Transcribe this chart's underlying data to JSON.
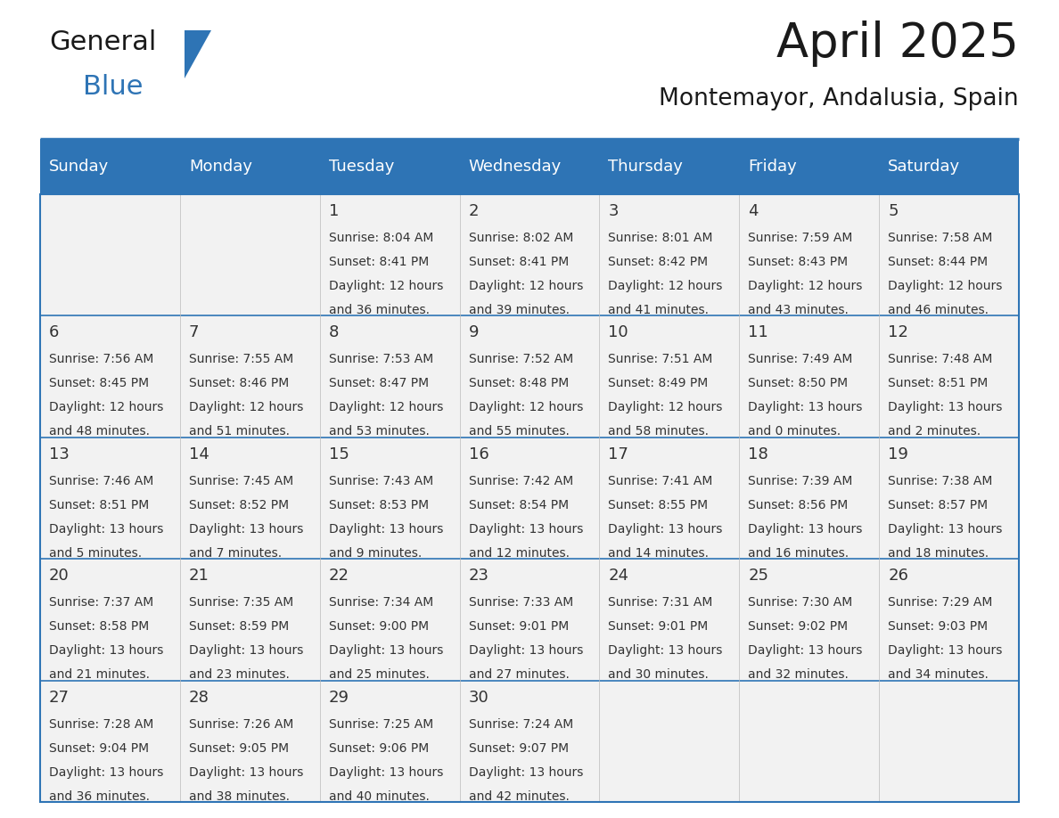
{
  "title": "April 2025",
  "subtitle": "Montemayor, Andalusia, Spain",
  "header_bg_color": "#2E74B5",
  "header_text_color": "#FFFFFF",
  "cell_bg_color": "#F2F2F2",
  "day_names": [
    "Sunday",
    "Monday",
    "Tuesday",
    "Wednesday",
    "Thursday",
    "Friday",
    "Saturday"
  ],
  "grid_line_color": "#2E74B5",
  "text_color": "#333333",
  "calendar": [
    [
      null,
      null,
      {
        "day": 1,
        "sunrise": "8:04 AM",
        "sunset": "8:41 PM",
        "daylight_hours": 12,
        "daylight_minutes": 36
      },
      {
        "day": 2,
        "sunrise": "8:02 AM",
        "sunset": "8:41 PM",
        "daylight_hours": 12,
        "daylight_minutes": 39
      },
      {
        "day": 3,
        "sunrise": "8:01 AM",
        "sunset": "8:42 PM",
        "daylight_hours": 12,
        "daylight_minutes": 41
      },
      {
        "day": 4,
        "sunrise": "7:59 AM",
        "sunset": "8:43 PM",
        "daylight_hours": 12,
        "daylight_minutes": 43
      },
      {
        "day": 5,
        "sunrise": "7:58 AM",
        "sunset": "8:44 PM",
        "daylight_hours": 12,
        "daylight_minutes": 46
      }
    ],
    [
      {
        "day": 6,
        "sunrise": "7:56 AM",
        "sunset": "8:45 PM",
        "daylight_hours": 12,
        "daylight_minutes": 48
      },
      {
        "day": 7,
        "sunrise": "7:55 AM",
        "sunset": "8:46 PM",
        "daylight_hours": 12,
        "daylight_minutes": 51
      },
      {
        "day": 8,
        "sunrise": "7:53 AM",
        "sunset": "8:47 PM",
        "daylight_hours": 12,
        "daylight_minutes": 53
      },
      {
        "day": 9,
        "sunrise": "7:52 AM",
        "sunset": "8:48 PM",
        "daylight_hours": 12,
        "daylight_minutes": 55
      },
      {
        "day": 10,
        "sunrise": "7:51 AM",
        "sunset": "8:49 PM",
        "daylight_hours": 12,
        "daylight_minutes": 58
      },
      {
        "day": 11,
        "sunrise": "7:49 AM",
        "sunset": "8:50 PM",
        "daylight_hours": 13,
        "daylight_minutes": 0
      },
      {
        "day": 12,
        "sunrise": "7:48 AM",
        "sunset": "8:51 PM",
        "daylight_hours": 13,
        "daylight_minutes": 2
      }
    ],
    [
      {
        "day": 13,
        "sunrise": "7:46 AM",
        "sunset": "8:51 PM",
        "daylight_hours": 13,
        "daylight_minutes": 5
      },
      {
        "day": 14,
        "sunrise": "7:45 AM",
        "sunset": "8:52 PM",
        "daylight_hours": 13,
        "daylight_minutes": 7
      },
      {
        "day": 15,
        "sunrise": "7:43 AM",
        "sunset": "8:53 PM",
        "daylight_hours": 13,
        "daylight_minutes": 9
      },
      {
        "day": 16,
        "sunrise": "7:42 AM",
        "sunset": "8:54 PM",
        "daylight_hours": 13,
        "daylight_minutes": 12
      },
      {
        "day": 17,
        "sunrise": "7:41 AM",
        "sunset": "8:55 PM",
        "daylight_hours": 13,
        "daylight_minutes": 14
      },
      {
        "day": 18,
        "sunrise": "7:39 AM",
        "sunset": "8:56 PM",
        "daylight_hours": 13,
        "daylight_minutes": 16
      },
      {
        "day": 19,
        "sunrise": "7:38 AM",
        "sunset": "8:57 PM",
        "daylight_hours": 13,
        "daylight_minutes": 18
      }
    ],
    [
      {
        "day": 20,
        "sunrise": "7:37 AM",
        "sunset": "8:58 PM",
        "daylight_hours": 13,
        "daylight_minutes": 21
      },
      {
        "day": 21,
        "sunrise": "7:35 AM",
        "sunset": "8:59 PM",
        "daylight_hours": 13,
        "daylight_minutes": 23
      },
      {
        "day": 22,
        "sunrise": "7:34 AM",
        "sunset": "9:00 PM",
        "daylight_hours": 13,
        "daylight_minutes": 25
      },
      {
        "day": 23,
        "sunrise": "7:33 AM",
        "sunset": "9:01 PM",
        "daylight_hours": 13,
        "daylight_minutes": 27
      },
      {
        "day": 24,
        "sunrise": "7:31 AM",
        "sunset": "9:01 PM",
        "daylight_hours": 13,
        "daylight_minutes": 30
      },
      {
        "day": 25,
        "sunrise": "7:30 AM",
        "sunset": "9:02 PM",
        "daylight_hours": 13,
        "daylight_minutes": 32
      },
      {
        "day": 26,
        "sunrise": "7:29 AM",
        "sunset": "9:03 PM",
        "daylight_hours": 13,
        "daylight_minutes": 34
      }
    ],
    [
      {
        "day": 27,
        "sunrise": "7:28 AM",
        "sunset": "9:04 PM",
        "daylight_hours": 13,
        "daylight_minutes": 36
      },
      {
        "day": 28,
        "sunrise": "7:26 AM",
        "sunset": "9:05 PM",
        "daylight_hours": 13,
        "daylight_minutes": 38
      },
      {
        "day": 29,
        "sunrise": "7:25 AM",
        "sunset": "9:06 PM",
        "daylight_hours": 13,
        "daylight_minutes": 40
      },
      {
        "day": 30,
        "sunrise": "7:24 AM",
        "sunset": "9:07 PM",
        "daylight_hours": 13,
        "daylight_minutes": 42
      },
      null,
      null,
      null
    ]
  ],
  "logo_general_color": "#1A1A1A",
  "logo_blue_color": "#2E74B5",
  "logo_triangle_color": "#2E74B5",
  "title_fontsize": 38,
  "subtitle_fontsize": 19,
  "dayname_fontsize": 13,
  "day_num_fontsize": 13,
  "info_fontsize": 10
}
